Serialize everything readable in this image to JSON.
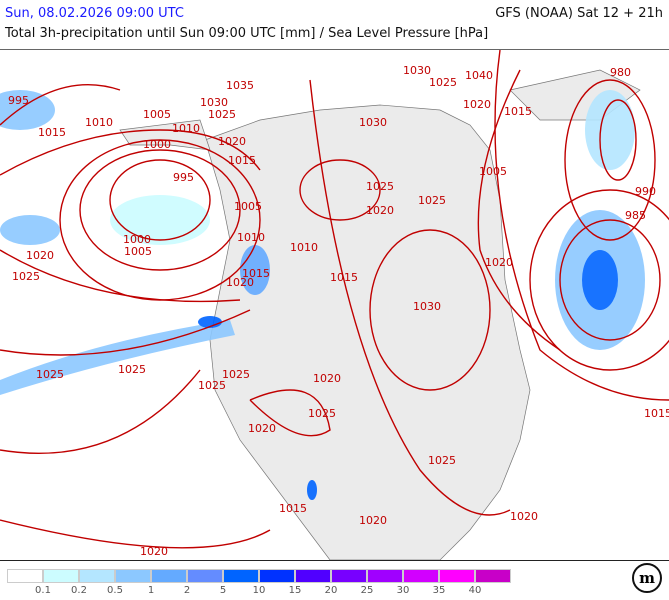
{
  "header": {
    "datetime": "Sun, 08.02.2026 09:00 UTC",
    "model": "GFS (NOAA) Sat 12 + 21h",
    "title": "Total 3h-precipitation until Sun 09:00 UTC [mm] / Sea Level Pressure [hPa]"
  },
  "colors": {
    "isobar": "#c00000",
    "land": "#ebebeb",
    "ocean": "#ffffff",
    "datetime": "#1a1aff"
  },
  "legend": {
    "unit": "mm",
    "colors": [
      "#ffffff",
      "#ccfcff",
      "#b4e6ff",
      "#8cc8ff",
      "#64aaff",
      "#648cff",
      "#0064ff",
      "#0032ff",
      "#5000ff",
      "#7800ff",
      "#a000ff",
      "#d200ff",
      "#ff00ff",
      "#c800c8"
    ],
    "labels": [
      "0.1",
      "0.2",
      "0.5",
      "1",
      "2",
      "5",
      "10",
      "15",
      "20",
      "25",
      "30",
      "35",
      "40"
    ]
  },
  "isobar_labels": [
    "995",
    "1015",
    "1010",
    "1005",
    "1000",
    "1035",
    "1030",
    "1025",
    "1010",
    "1020",
    "1015",
    "995",
    "1005",
    "1000",
    "1005",
    "1020",
    "1025",
    "1010",
    "1010",
    "1015",
    "1020",
    "1015",
    "1030",
    "1030",
    "1025",
    "1040",
    "1020",
    "1015",
    "1025",
    "1020",
    "1025",
    "1005",
    "1020",
    "1030",
    "980",
    "990",
    "985",
    "1025",
    "1025",
    "1025",
    "1025",
    "1020",
    "1025",
    "1020",
    "1025",
    "1015",
    "1020",
    "1020",
    "1020",
    "1015"
  ],
  "logo": "m"
}
